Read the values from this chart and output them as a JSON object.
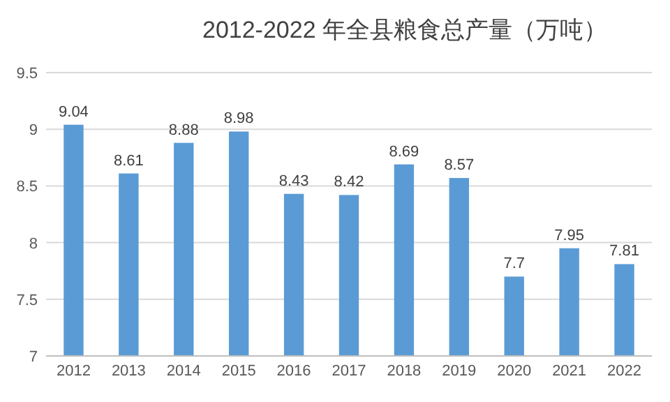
{
  "chart_data": {
    "type": "bar",
    "title": "2012-2022 年全县粮食总产量（万吨）",
    "categories": [
      "2012",
      "2013",
      "2014",
      "2015",
      "2016",
      "2017",
      "2018",
      "2019",
      "2020",
      "2021",
      "2022"
    ],
    "values": [
      9.04,
      8.61,
      8.88,
      8.98,
      8.43,
      8.42,
      8.69,
      8.57,
      7.7,
      7.95,
      7.81
    ],
    "color": "#5b9bd5",
    "ylim": [
      7,
      9.5
    ],
    "yticks": [
      7,
      7.5,
      8,
      8.5,
      9,
      9.5
    ],
    "grid": "y",
    "data_labels": true
  }
}
